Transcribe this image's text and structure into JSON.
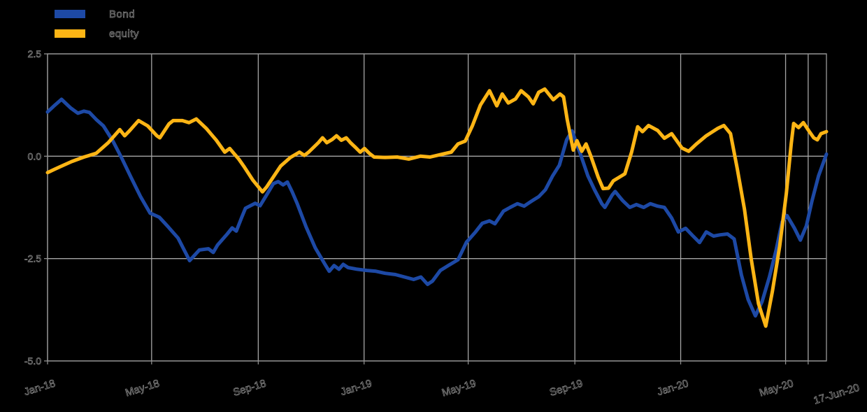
{
  "page": {
    "background": "#000000"
  },
  "legend": {
    "position": "top-left"
  },
  "chart_data": {
    "type": "line",
    "title": "",
    "xlabel": "",
    "ylabel": "",
    "x_unit": "weeks since Jan-2018",
    "x_range_weeks": [
      0,
      128.3
    ],
    "x_ticks": [
      {
        "label": "Jan-18",
        "week": 0
      },
      {
        "label": "May-18",
        "week": 17.14
      },
      {
        "label": "Sep-18",
        "week": 34.71
      },
      {
        "label": "Jan-19",
        "week": 52.14
      },
      {
        "label": "May-19",
        "week": 69.29
      },
      {
        "label": "Sep-19",
        "week": 86.86
      },
      {
        "label": "Jan-20",
        "week": 104.29
      },
      {
        "label": "May-20",
        "week": 121.57
      },
      {
        "label": "17-Jun-20",
        "week": 125.29
      }
    ],
    "y_range": [
      -5.0,
      2.5
    ],
    "y_ticks": [
      {
        "label": "2.5",
        "value": 2.5
      },
      {
        "label": "0.0",
        "value": 0.0
      },
      {
        "label": "-2.5",
        "value": -2.5
      },
      {
        "label": "-5.0",
        "value": -5.0
      }
    ],
    "grid": true,
    "grid_color": "#a6a6a6",
    "axis_color": "#8f8f8f",
    "text_color": "#8d8d8d",
    "line_width": 5,
    "legend_position": "top-left",
    "series": [
      {
        "name": "Bond",
        "color": "#1d49a5",
        "points": [
          [
            0,
            1.08
          ],
          [
            1,
            1.22
          ],
          [
            2.3,
            1.39
          ],
          [
            3.8,
            1.18
          ],
          [
            5,
            1.05
          ],
          [
            6,
            1.1
          ],
          [
            6.9,
            1.07
          ],
          [
            8,
            0.9
          ],
          [
            9.2,
            0.74
          ],
          [
            10.7,
            0.39
          ],
          [
            12.3,
            -0.07
          ],
          [
            13.8,
            -0.53
          ],
          [
            15.3,
            -0.98
          ],
          [
            16.9,
            -1.39
          ],
          [
            18.4,
            -1.49
          ],
          [
            19.9,
            -1.73
          ],
          [
            21.5,
            -2.0
          ],
          [
            23.4,
            -2.55
          ],
          [
            25,
            -2.29
          ],
          [
            26.5,
            -2.26
          ],
          [
            27.3,
            -2.35
          ],
          [
            28,
            -2.17
          ],
          [
            29.6,
            -1.9
          ],
          [
            30.4,
            -1.75
          ],
          [
            31.1,
            -1.83
          ],
          [
            32,
            -1.49
          ],
          [
            32.6,
            -1.27
          ],
          [
            34.2,
            -1.15
          ],
          [
            35,
            -1.21
          ],
          [
            35.7,
            -1.04
          ],
          [
            37.2,
            -0.67
          ],
          [
            38,
            -0.62
          ],
          [
            38.8,
            -0.7
          ],
          [
            39.5,
            -0.63
          ],
          [
            40.3,
            -0.87
          ],
          [
            41.1,
            -1.15
          ],
          [
            42.6,
            -1.73
          ],
          [
            44.1,
            -2.24
          ],
          [
            45.7,
            -2.64
          ],
          [
            46.4,
            -2.81
          ],
          [
            47.2,
            -2.67
          ],
          [
            48,
            -2.76
          ],
          [
            48.7,
            -2.64
          ],
          [
            49.5,
            -2.72
          ],
          [
            51,
            -2.76
          ],
          [
            52.6,
            -2.79
          ],
          [
            54.1,
            -2.81
          ],
          [
            55.6,
            -2.86
          ],
          [
            57.3,
            -2.89
          ],
          [
            58.8,
            -2.95
          ],
          [
            60.3,
            -3.01
          ],
          [
            61.5,
            -2.95
          ],
          [
            62.6,
            -3.13
          ],
          [
            63.4,
            -3.05
          ],
          [
            64.7,
            -2.79
          ],
          [
            66,
            -2.67
          ],
          [
            67.6,
            -2.53
          ],
          [
            69,
            -2.1
          ],
          [
            70.5,
            -1.85
          ],
          [
            71.6,
            -1.64
          ],
          [
            72.8,
            -1.58
          ],
          [
            73.7,
            -1.65
          ],
          [
            75.1,
            -1.34
          ],
          [
            76.2,
            -1.25
          ],
          [
            77.4,
            -1.16
          ],
          [
            78.5,
            -1.22
          ],
          [
            79.7,
            -1.1
          ],
          [
            80.9,
            -0.99
          ],
          [
            82,
            -0.82
          ],
          [
            83.2,
            -0.48
          ],
          [
            84.3,
            -0.22
          ],
          [
            85.5,
            0.4
          ],
          [
            86.4,
            0.62
          ],
          [
            87.9,
            0.0
          ],
          [
            89,
            -0.48
          ],
          [
            90.1,
            -0.82
          ],
          [
            91.3,
            -1.16
          ],
          [
            91.8,
            -1.25
          ],
          [
            93,
            -0.95
          ],
          [
            93.5,
            -0.86
          ],
          [
            94.7,
            -1.08
          ],
          [
            95.9,
            -1.25
          ],
          [
            97,
            -1.18
          ],
          [
            98.2,
            -1.25
          ],
          [
            99.3,
            -1.16
          ],
          [
            100.5,
            -1.22
          ],
          [
            101.6,
            -1.25
          ],
          [
            102.8,
            -1.51
          ],
          [
            103.9,
            -1.85
          ],
          [
            105.1,
            -1.76
          ],
          [
            106.2,
            -1.93
          ],
          [
            107.4,
            -2.11
          ],
          [
            108.5,
            -1.85
          ],
          [
            109.7,
            -1.95
          ],
          [
            110.8,
            -1.92
          ],
          [
            112,
            -1.9
          ],
          [
            113.1,
            -2.02
          ],
          [
            114.3,
            -2.9
          ],
          [
            115.4,
            -3.5
          ],
          [
            116.6,
            -3.9
          ],
          [
            117.7,
            -3.55
          ],
          [
            118.9,
            -2.95
          ],
          [
            120,
            -2.3
          ],
          [
            121,
            -1.6
          ],
          [
            121.8,
            -1.45
          ],
          [
            123,
            -1.75
          ],
          [
            124,
            -2.05
          ],
          [
            125,
            -1.7
          ],
          [
            125.9,
            -1.1
          ],
          [
            127,
            -0.48
          ],
          [
            128.3,
            0.05
          ]
        ]
      },
      {
        "name": "equity",
        "color": "#fdb515",
        "points": [
          [
            0,
            -0.4
          ],
          [
            1,
            -0.33
          ],
          [
            2,
            -0.26
          ],
          [
            4,
            -0.13
          ],
          [
            6,
            -0.02
          ],
          [
            8,
            0.07
          ],
          [
            10,
            0.33
          ],
          [
            11.9,
            0.65
          ],
          [
            12.7,
            0.5
          ],
          [
            13.5,
            0.62
          ],
          [
            15,
            0.87
          ],
          [
            16.5,
            0.74
          ],
          [
            18,
            0.5
          ],
          [
            18.5,
            0.45
          ],
          [
            20,
            0.79
          ],
          [
            20.7,
            0.87
          ],
          [
            22.2,
            0.87
          ],
          [
            23.3,
            0.82
          ],
          [
            24.5,
            0.91
          ],
          [
            26.2,
            0.67
          ],
          [
            27,
            0.53
          ],
          [
            27.8,
            0.39
          ],
          [
            29.2,
            0.1
          ],
          [
            30,
            0.19
          ],
          [
            30.8,
            0.05
          ],
          [
            31.5,
            -0.07
          ],
          [
            32.3,
            -0.24
          ],
          [
            33.8,
            -0.58
          ],
          [
            35.4,
            -0.87
          ],
          [
            36.1,
            -0.75
          ],
          [
            38.4,
            -0.24
          ],
          [
            40,
            -0.03
          ],
          [
            41.5,
            0.1
          ],
          [
            42.3,
            0.02
          ],
          [
            43,
            0.1
          ],
          [
            44.6,
            0.33
          ],
          [
            45.3,
            0.45
          ],
          [
            46,
            0.33
          ],
          [
            46.9,
            0.41
          ],
          [
            47.6,
            0.5
          ],
          [
            48.4,
            0.39
          ],
          [
            49.2,
            0.45
          ],
          [
            49.9,
            0.33
          ],
          [
            50.7,
            0.22
          ],
          [
            51.5,
            0.1
          ],
          [
            52.2,
            0.19
          ],
          [
            53,
            0.07
          ],
          [
            53.8,
            -0.02
          ],
          [
            55.6,
            -0.03
          ],
          [
            57.6,
            -0.02
          ],
          [
            59.5,
            -0.07
          ],
          [
            61.4,
            0.0
          ],
          [
            63,
            -0.02
          ],
          [
            65,
            0.05
          ],
          [
            66.5,
            0.1
          ],
          [
            67.6,
            0.3
          ],
          [
            68.8,
            0.37
          ],
          [
            70,
            0.75
          ],
          [
            71.3,
            1.25
          ],
          [
            72.8,
            1.6
          ],
          [
            74,
            1.23
          ],
          [
            74.9,
            1.52
          ],
          [
            75.9,
            1.3
          ],
          [
            77.1,
            1.4
          ],
          [
            78,
            1.6
          ],
          [
            79.2,
            1.45
          ],
          [
            80,
            1.28
          ],
          [
            80.9,
            1.56
          ],
          [
            81.9,
            1.64
          ],
          [
            83.3,
            1.38
          ],
          [
            84.4,
            1.52
          ],
          [
            85,
            1.45
          ],
          [
            85.6,
            0.9
          ],
          [
            86.6,
            0.15
          ],
          [
            87.2,
            0.38
          ],
          [
            88,
            0.12
          ],
          [
            88.7,
            0.3
          ],
          [
            89.5,
            0.0
          ],
          [
            90.7,
            -0.51
          ],
          [
            91.5,
            -0.79
          ],
          [
            92.4,
            -0.78
          ],
          [
            93.2,
            -0.6
          ],
          [
            95.1,
            -0.43
          ],
          [
            96.2,
            0.1
          ],
          [
            97.2,
            0.72
          ],
          [
            98,
            0.6
          ],
          [
            99,
            0.75
          ],
          [
            100.5,
            0.63
          ],
          [
            101.6,
            0.44
          ],
          [
            102.8,
            0.55
          ],
          [
            104.5,
            0.2
          ],
          [
            105.6,
            0.12
          ],
          [
            106.8,
            0.29
          ],
          [
            108.5,
            0.5
          ],
          [
            110.4,
            0.68
          ],
          [
            111.4,
            0.75
          ],
          [
            112.5,
            0.55
          ],
          [
            113.6,
            -0.3
          ],
          [
            114.8,
            -1.3
          ],
          [
            115.9,
            -2.5
          ],
          [
            117.1,
            -3.6
          ],
          [
            118.3,
            -4.15
          ],
          [
            119.4,
            -3.3
          ],
          [
            120.6,
            -2.2
          ],
          [
            121.7,
            -0.9
          ],
          [
            122.5,
            0.3
          ],
          [
            122.9,
            0.8
          ],
          [
            123.7,
            0.7
          ],
          [
            124.5,
            0.82
          ],
          [
            125.4,
            0.62
          ],
          [
            126.2,
            0.45
          ],
          [
            126.8,
            0.4
          ],
          [
            127.4,
            0.55
          ],
          [
            128.3,
            0.6
          ]
        ]
      }
    ]
  }
}
